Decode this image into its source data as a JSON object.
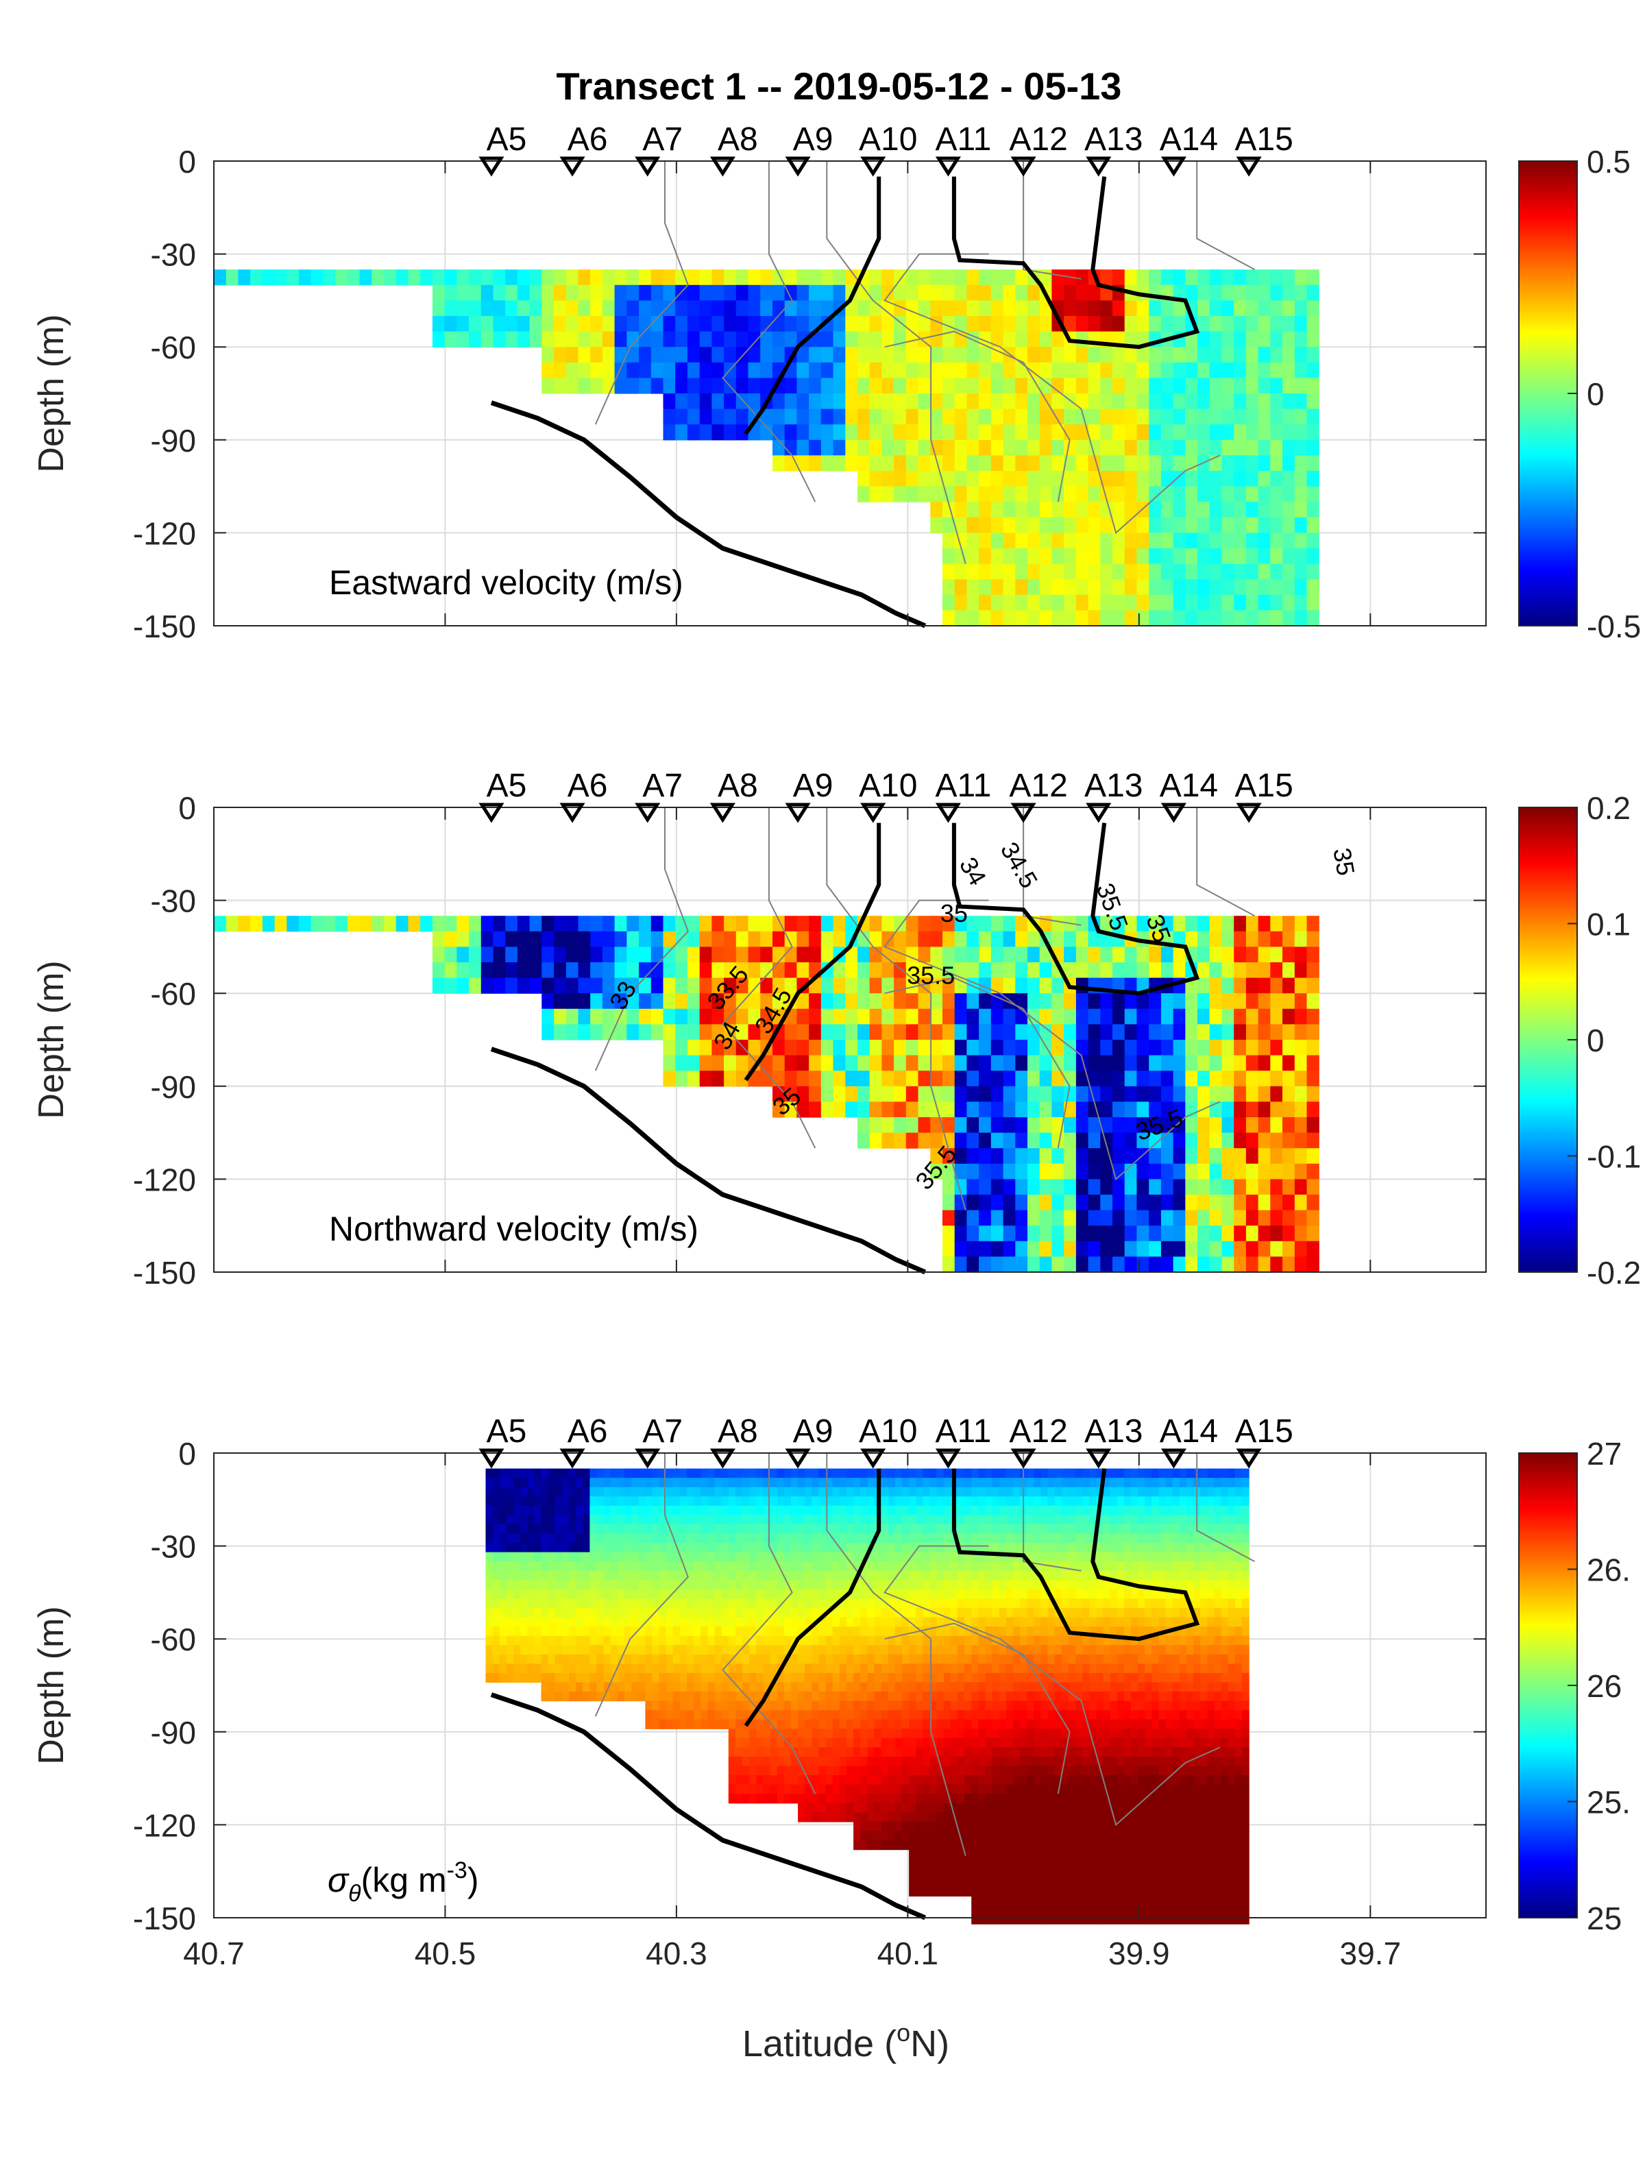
{
  "figure": {
    "title": "Transect 1 -- 2019-05-12 - 05-13",
    "xlabel": "Latitude (°N)",
    "xlabel_parts": [
      "Latitude (",
      "o",
      "N)"
    ],
    "xticks": [
      "40.7",
      "40.5",
      "40.3",
      "40.1",
      "39.9",
      "39.7"
    ],
    "xlim": [
      40.7,
      39.6
    ],
    "stations": [
      {
        "name": "A5",
        "lat": 40.46
      },
      {
        "name": "A6",
        "lat": 40.39
      },
      {
        "name": "A7",
        "lat": 40.325
      },
      {
        "name": "A8",
        "lat": 40.26
      },
      {
        "name": "A9",
        "lat": 40.195
      },
      {
        "name": "A10",
        "lat": 40.13
      },
      {
        "name": "A11",
        "lat": 40.065
      },
      {
        "name": "A12",
        "lat": 40.0
      },
      {
        "name": "A13",
        "lat": 39.935
      },
      {
        "name": "A14",
        "lat": 39.87
      },
      {
        "name": "A15",
        "lat": 39.805
      }
    ]
  },
  "chart_data": [
    {
      "type": "heatmap",
      "panel_label": "Eastward velocity (m/s)",
      "ylabel": "Depth (m)",
      "yticks": [
        "0",
        "-30",
        "-60",
        "-90",
        "-120",
        "-150"
      ],
      "ylim": [
        -150,
        0
      ],
      "clim": [
        -0.5,
        0.5
      ],
      "cbar_ticks": [
        "0.5",
        "0",
        "-0.5"
      ],
      "cbar_colors": [
        "#800000",
        "#ff0000",
        "#ffff00",
        "#00ffff",
        "#0000ff",
        "#000080"
      ],
      "contour_labels": []
    },
    {
      "type": "heatmap",
      "panel_label": "Northward velocity (m/s)",
      "ylabel": "Depth (m)",
      "yticks": [
        "0",
        "-30",
        "-60",
        "-90",
        "-120",
        "-150"
      ],
      "ylim": [
        -150,
        0
      ],
      "clim": [
        -0.2,
        0.2
      ],
      "cbar_ticks": [
        "0.2",
        "0.1",
        "0",
        "-0.1",
        "-0.2"
      ],
      "cbar_colors": [
        "#800000",
        "#ff0000",
        "#ffff00",
        "#00ffff",
        "#0000ff",
        "#000080"
      ],
      "contour_labels": [
        "33",
        "33.5",
        "34",
        "34.5",
        "35",
        "35.5",
        "34",
        "34.5",
        "35",
        "35.5",
        "35",
        "35",
        "35.5",
        "35.5"
      ]
    },
    {
      "type": "heatmap",
      "panel_label_parts": [
        "σ",
        "θ",
        "(kg m",
        "-3",
        ")"
      ],
      "ylabel": "Depth (m)",
      "yticks": [
        "0",
        "-30",
        "-60",
        "-90",
        "-120",
        "-150"
      ],
      "ylim": [
        -150,
        0
      ],
      "clim": [
        25,
        27
      ],
      "cbar_ticks": [
        "27",
        "26.",
        "26",
        "25.",
        "25"
      ],
      "cbar_colors": [
        "#800000",
        "#ff0000",
        "#ffff00",
        "#00ffff",
        "#0000ff",
        "#000080"
      ],
      "contour_labels": []
    }
  ]
}
